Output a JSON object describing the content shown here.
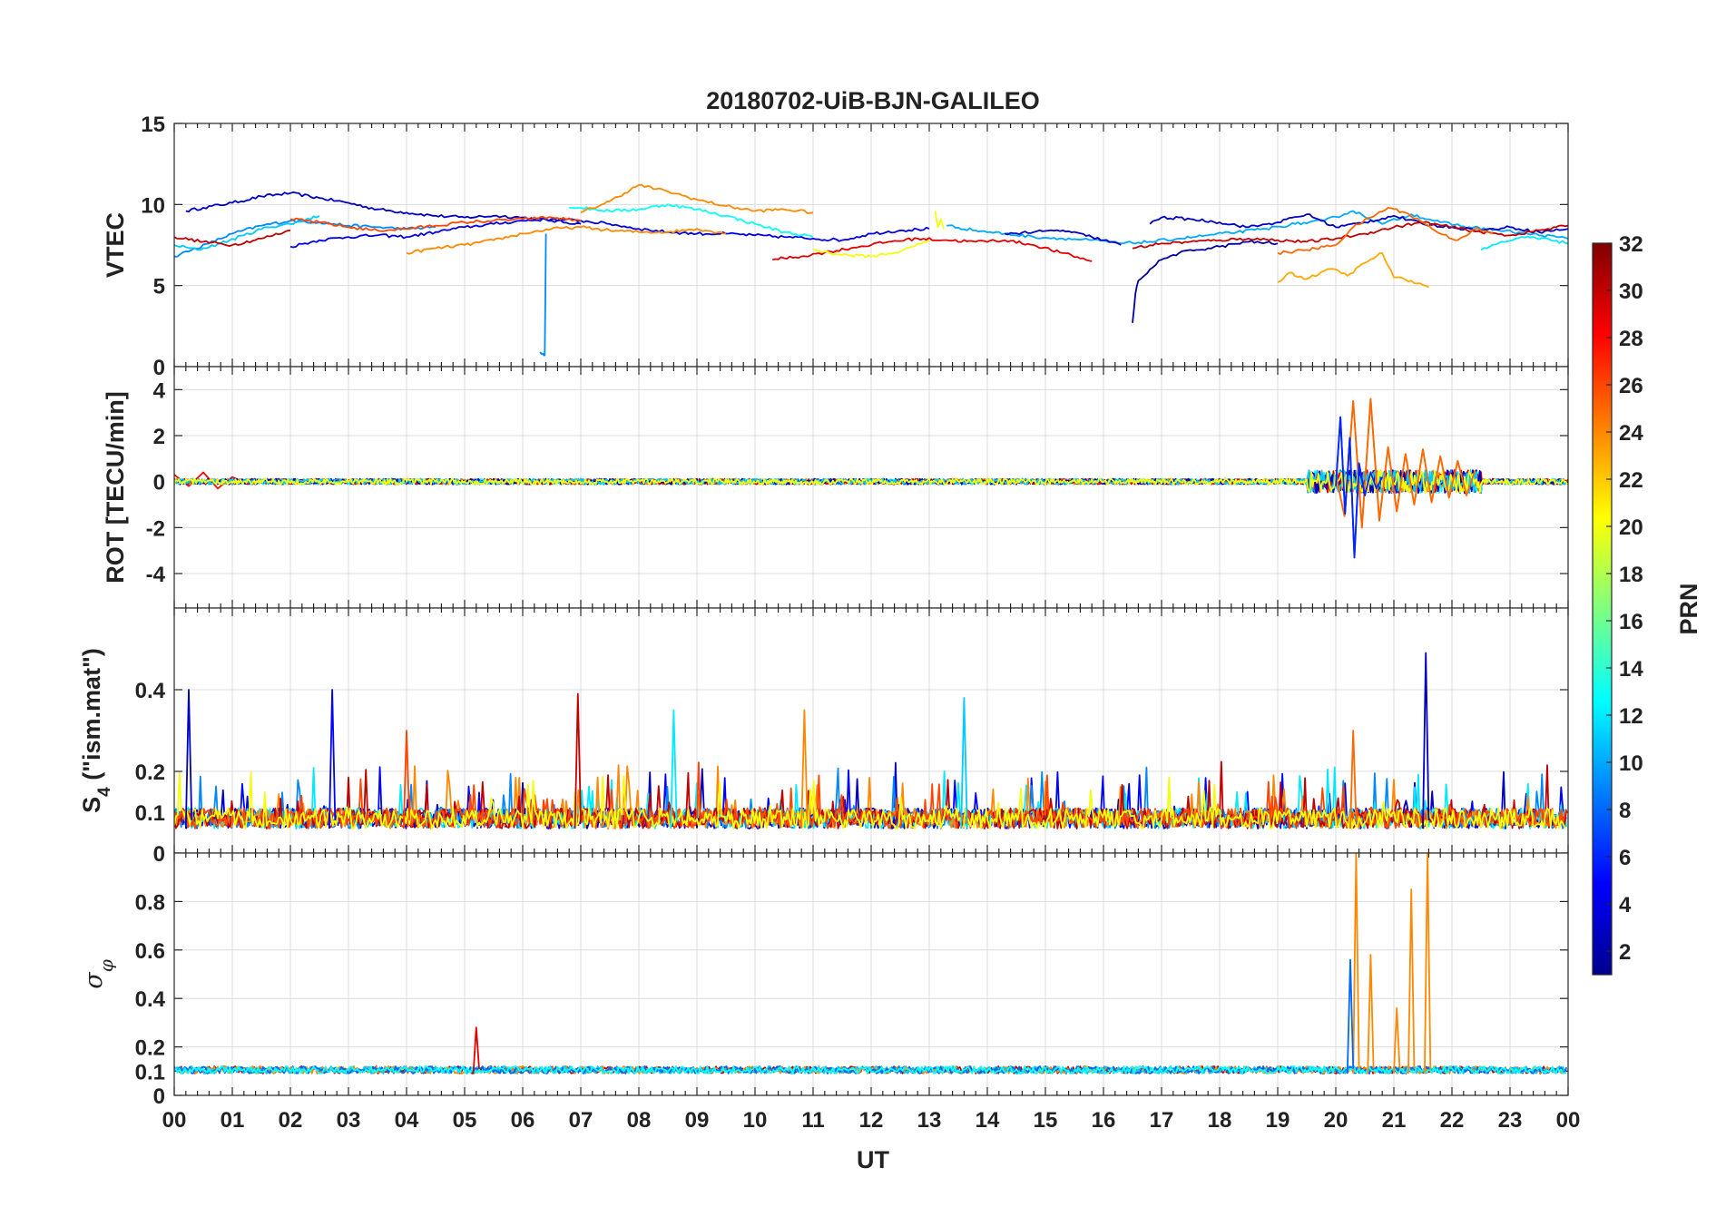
{
  "chart_data": {
    "type": "line",
    "title": "20180702-UiB-BJN-GALILEO",
    "xlabel": "UT",
    "x_ticks": [
      "00",
      "01",
      "02",
      "03",
      "04",
      "05",
      "06",
      "07",
      "08",
      "09",
      "10",
      "11",
      "12",
      "13",
      "14",
      "15",
      "16",
      "17",
      "18",
      "19",
      "20",
      "21",
      "22",
      "23",
      "00"
    ],
    "xlim": [
      0,
      24
    ],
    "colorbar": {
      "label": "PRN",
      "range": [
        1,
        32
      ],
      "ticks": [
        "32",
        "30",
        "28",
        "26",
        "24",
        "22",
        "20",
        "18",
        "16",
        "14",
        "12",
        "10",
        "8",
        "6",
        "4",
        "2"
      ]
    },
    "panels": [
      {
        "ylabel": "VTEC",
        "ylim": [
          0,
          15
        ],
        "yticks": [
          "0",
          "5",
          "10",
          "15"
        ],
        "series": [
          {
            "prn": 3,
            "x": [
              0.2,
              0.5,
              1.0,
              1.5,
              2.0,
              2.5,
              3.0,
              3.5,
              4.0,
              4.5,
              5.0,
              5.5,
              6.0,
              6.5,
              7.0
            ],
            "y": [
              9.6,
              9.8,
              10.1,
              10.5,
              10.7,
              10.4,
              10.1,
              9.7,
              9.5,
              9.3,
              9.2,
              9.3,
              9.2,
              9.0,
              8.8
            ]
          },
          {
            "prn": 9,
            "x": [
              0.0,
              0.3,
              0.6,
              1.0,
              1.5,
              2.0,
              2.5,
              3.0,
              3.5,
              4.0,
              4.5
            ],
            "y": [
              6.8,
              7.2,
              7.6,
              8.2,
              8.7,
              9.0,
              8.9,
              8.7,
              8.6,
              8.5,
              8.6
            ]
          },
          {
            "prn": 11,
            "x": [
              0.0,
              0.4,
              0.8,
              1.2,
              1.6,
              2.0,
              2.5
            ],
            "y": [
              7.5,
              7.2,
              7.6,
              8.1,
              8.6,
              8.8,
              9.3
            ]
          },
          {
            "prn": 30,
            "x": [
              0.0,
              0.5,
              1.0,
              1.5,
              2.0
            ],
            "y": [
              8.0,
              7.7,
              7.5,
              7.9,
              8.4
            ]
          },
          {
            "prn": 4,
            "x": [
              2.0,
              2.5,
              3.0,
              3.5,
              4.0,
              4.5,
              5.0,
              5.5,
              6.0,
              6.5,
              7.0,
              7.5,
              8.0,
              8.5,
              9.0,
              9.5,
              10.0,
              10.5,
              11.0,
              11.5,
              12.0,
              12.5,
              13.0
            ],
            "y": [
              7.4,
              7.8,
              8.0,
              8.1,
              8.0,
              8.3,
              8.6,
              8.8,
              9.0,
              9.1,
              9.0,
              8.8,
              8.5,
              8.3,
              8.2,
              8.2,
              8.1,
              8.0,
              7.9,
              7.8,
              8.2,
              8.4,
              8.5
            ]
          },
          {
            "prn": 26,
            "x": [
              2.0,
              2.5,
              3.0,
              3.5,
              4.0,
              4.5,
              5.0,
              5.5,
              6.0,
              6.5,
              7.0
            ],
            "y": [
              9.1,
              8.9,
              8.6,
              8.4,
              8.5,
              8.7,
              8.9,
              9.0,
              9.1,
              9.2,
              9.0
            ]
          },
          {
            "prn": 24,
            "x": [
              4.0,
              4.5,
              5.0,
              5.5,
              6.0,
              6.5,
              7.0,
              7.5,
              8.0,
              8.5,
              9.0,
              9.5
            ],
            "y": [
              7.0,
              7.3,
              7.5,
              7.8,
              8.2,
              8.5,
              8.6,
              8.4,
              8.3,
              8.3,
              8.5,
              8.2
            ]
          },
          {
            "prn": 9,
            "x": [
              6.3,
              6.35,
              6.38,
              6.4
            ],
            "y": [
              0.9,
              0.8,
              0.7,
              8.2
            ]
          },
          {
            "prn": 13,
            "x": [
              6.8,
              7.0,
              7.5,
              8.0,
              8.5,
              9.0,
              9.5,
              10.0,
              10.5,
              11.0
            ],
            "y": [
              9.8,
              9.8,
              9.6,
              9.7,
              10.0,
              9.7,
              9.3,
              8.8,
              8.3,
              8.0
            ]
          },
          {
            "prn": 24,
            "x": [
              7.0,
              7.5,
              8.0,
              8.5,
              9.0,
              9.5,
              10.0,
              10.5,
              11.0
            ],
            "y": [
              9.5,
              10.2,
              11.2,
              10.8,
              10.3,
              9.9,
              9.6,
              9.7,
              9.5
            ]
          },
          {
            "prn": 29,
            "x": [
              10.3,
              10.8,
              11.3,
              11.8,
              12.3,
              12.8,
              13.3,
              13.8,
              14.3,
              14.8,
              15.3,
              15.8
            ],
            "y": [
              6.6,
              6.8,
              7.1,
              7.4,
              7.7,
              7.9,
              7.8,
              7.7,
              7.8,
              7.5,
              7.0,
              6.5
            ]
          },
          {
            "prn": 20,
            "x": [
              11.0,
              11.5,
              12.0,
              12.5,
              13.0
            ],
            "y": [
              7.2,
              6.9,
              6.8,
              7.1,
              7.8
            ]
          },
          {
            "prn": 20,
            "x": [
              13.1,
              13.15,
              13.2,
              13.25
            ],
            "y": [
              9.6,
              8.6,
              9.1,
              8.5
            ]
          },
          {
            "prn": 10,
            "x": [
              13.3,
              13.8,
              14.3,
              14.8,
              15.3,
              15.8,
              16.3,
              16.8,
              17.3,
              17.8,
              18.3,
              18.8,
              19.3,
              19.8,
              20.3,
              20.8,
              21.3,
              21.8,
              22.3,
              22.8,
              23.3,
              23.8,
              24.0
            ],
            "y": [
              8.7,
              8.4,
              8.2,
              8.0,
              7.9,
              7.8,
              7.6,
              7.7,
              7.9,
              8.1,
              8.3,
              8.5,
              8.8,
              9.0,
              9.6,
              8.8,
              9.4,
              8.9,
              8.6,
              8.4,
              8.2,
              8.0,
              7.9
            ]
          },
          {
            "prn": 3,
            "x": [
              14.3,
              14.8,
              15.3,
              15.8,
              16.3
            ],
            "y": [
              8.2,
              8.3,
              8.4,
              8.0,
              7.5
            ]
          },
          {
            "prn": 2,
            "x": [
              16.5,
              16.55,
              16.6,
              16.8,
              17.0,
              17.3,
              17.6,
              18.0,
              18.5,
              19.0
            ],
            "y": [
              2.7,
              4.5,
              5.3,
              6.0,
              6.6,
              7.0,
              7.2,
              7.4,
              7.7,
              7.6
            ]
          },
          {
            "prn": 3,
            "x": [
              16.8,
              17.0,
              17.5,
              18.0,
              18.5,
              19.0,
              19.5,
              20.0,
              20.5,
              21.0,
              21.5,
              22.0,
              22.5,
              23.0,
              23.5,
              24.0
            ],
            "y": [
              8.8,
              9.2,
              9.1,
              8.9,
              8.6,
              8.9,
              9.4,
              8.6,
              8.9,
              9.3,
              8.8,
              8.6,
              8.4,
              8.6,
              8.3,
              8.5
            ]
          },
          {
            "prn": 30,
            "x": [
              16.5,
              17.0,
              17.5,
              18.0,
              18.5,
              19.0,
              19.5,
              20.0,
              20.5,
              21.0,
              21.5,
              22.0,
              22.5,
              23.0,
              23.5,
              24.0
            ],
            "y": [
              7.3,
              7.6,
              7.7,
              7.8,
              7.9,
              7.8,
              7.7,
              7.9,
              8.2,
              8.6,
              8.9,
              8.6,
              8.3,
              8.1,
              8.4,
              8.7
            ]
          },
          {
            "prn": 23,
            "x": [
              19.0,
              19.2,
              19.5,
              19.8,
              20.0,
              20.2,
              20.5,
              20.8,
              21.0,
              21.3,
              21.6
            ],
            "y": [
              5.2,
              5.8,
              5.4,
              5.9,
              6.0,
              5.6,
              6.4,
              7.0,
              5.5,
              5.3,
              4.9
            ]
          },
          {
            "prn": 25,
            "x": [
              19.0,
              19.5,
              20.0,
              20.3,
              20.6,
              20.9,
              21.2,
              21.5,
              21.8,
              22.1,
              22.4,
              22.7
            ],
            "y": [
              7.0,
              7.2,
              7.5,
              8.6,
              9.2,
              9.8,
              9.5,
              8.9,
              8.2,
              7.8,
              8.5,
              8.2
            ]
          },
          {
            "prn": 12,
            "x": [
              22.5,
              22.8,
              23.1,
              23.4,
              23.7,
              24.0
            ],
            "y": [
              7.2,
              7.6,
              7.9,
              8.0,
              7.8,
              7.6
            ]
          }
        ]
      },
      {
        "ylabel": "ROT [TECU/min]",
        "ylim": [
          -5.5,
          5
        ],
        "yticks": [
          "-4",
          "-2",
          "0",
          "2",
          "4"
        ],
        "series": [
          {
            "prn": 25,
            "x": [
              20.0,
              20.15,
              20.3,
              20.45,
              20.6,
              20.75,
              20.9,
              21.05,
              21.2,
              21.35,
              21.5,
              21.65,
              21.8,
              21.95,
              22.1,
              22.25,
              22.4
            ],
            "y": [
              0.3,
              -1.5,
              3.5,
              -2.0,
              3.6,
              -1.7,
              1.5,
              -1.3,
              1.2,
              -1.0,
              1.4,
              -0.9,
              1.1,
              -0.7,
              0.9,
              -0.6,
              0.5
            ]
          },
          {
            "prn": 6,
            "x": [
              20.0,
              20.08,
              20.16,
              20.24,
              20.32,
              20.4,
              20.5,
              20.6,
              20.7,
              20.8
            ],
            "y": [
              -0.2,
              2.8,
              -1.4,
              1.9,
              -3.3,
              0.8,
              -0.6,
              0.4,
              -0.3,
              0.2
            ]
          },
          {
            "prn": 28,
            "x": [
              0.0,
              0.25,
              0.5,
              0.75,
              1.0,
              1.25
            ],
            "y": [
              0.3,
              -0.2,
              0.4,
              -0.3,
              0.2,
              -0.1
            ]
          }
        ]
      },
      {
        "ylabel": "S4 (\"ism.mat\")",
        "ylim": [
          0.0,
          0.6
        ],
        "yticks": [
          "0",
          "0.1",
          "0.2",
          "0.4"
        ],
        "peaks": [
          {
            "prn": 3,
            "x": 0.25,
            "y": 0.4
          },
          {
            "prn": 5,
            "x": 2.72,
            "y": 0.4
          },
          {
            "prn": 30,
            "x": 6.95,
            "y": 0.39
          },
          {
            "prn": 12,
            "x": 8.6,
            "y": 0.35
          },
          {
            "prn": 24,
            "x": 10.85,
            "y": 0.35
          },
          {
            "prn": 11,
            "x": 13.6,
            "y": 0.38
          },
          {
            "prn": 3,
            "x": 21.55,
            "y": 0.49
          },
          {
            "prn": 25,
            "x": 20.3,
            "y": 0.3
          },
          {
            "prn": 26,
            "x": 4.0,
            "y": 0.3
          }
        ]
      },
      {
        "ylabel": "σφ",
        "ylim": [
          0.0,
          1.0
        ],
        "yticks": [
          "0",
          "0.1",
          "0.2",
          "0.4",
          "0.6",
          "0.8"
        ],
        "peaks": [
          {
            "prn": 24,
            "x": 20.35,
            "y": 1.0
          },
          {
            "prn": 24,
            "x": 20.6,
            "y": 0.58
          },
          {
            "prn": 24,
            "x": 21.05,
            "y": 0.36
          },
          {
            "prn": 24,
            "x": 21.3,
            "y": 0.85
          },
          {
            "prn": 24,
            "x": 21.58,
            "y": 1.0
          },
          {
            "prn": 8,
            "x": 20.25,
            "y": 0.56
          },
          {
            "prn": 29,
            "x": 5.2,
            "y": 0.28
          }
        ]
      }
    ]
  }
}
